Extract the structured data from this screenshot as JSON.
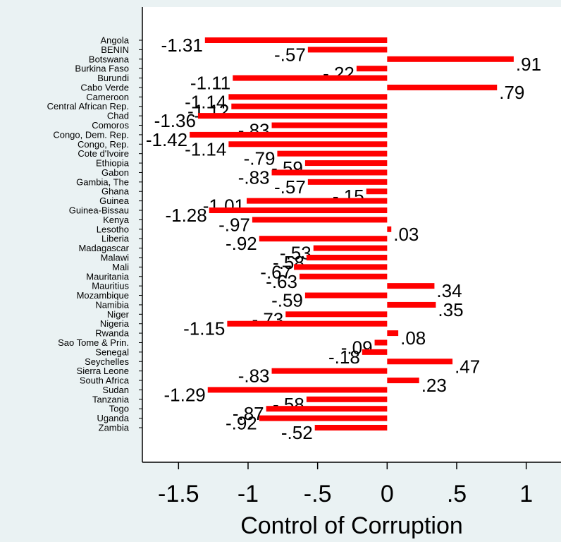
{
  "chart_data": {
    "type": "hbar",
    "x_label": "Control of Corruption",
    "categories": [
      "Angola",
      "BENIN",
      "Botswana",
      "Burkina Faso",
      "Burundi",
      "Cabo Verde",
      "Cameroon",
      "Central African Rep.",
      "Chad",
      "Comoros",
      "Congo, Dem. Rep.",
      "Congo, Rep.",
      "Cote d'Ivoire",
      "Ethiopia",
      "Gabon",
      "Gambia, The",
      "Ghana",
      "Guinea",
      "Guinea-Bissau",
      "Kenya",
      "Lesotho",
      "Liberia",
      "Madagascar",
      "Malawi",
      "Mali",
      "Mauritania",
      "Mauritius",
      "Mozambique",
      "Namibia",
      "Niger",
      "Nigeria",
      "Rwanda",
      "Sao Tome & Prin.",
      "Senegal",
      "Seychelles",
      "Sierra Leone",
      "South Africa",
      "Sudan",
      "Tanzania",
      "Togo",
      "Uganda",
      "Zambia"
    ],
    "values": [
      -1.31,
      -0.57,
      0.91,
      -0.22,
      -1.11,
      0.79,
      -1.14,
      -1.12,
      -1.36,
      -0.83,
      -1.42,
      -1.14,
      -0.79,
      -0.59,
      -0.83,
      -0.57,
      -0.15,
      -1.01,
      -1.28,
      -0.97,
      0.03,
      -0.92,
      -0.53,
      -0.58,
      -0.67,
      -0.63,
      0.34,
      -0.59,
      0.35,
      -0.73,
      -1.15,
      0.08,
      -0.09,
      -0.18,
      0.47,
      -0.83,
      0.23,
      -1.29,
      -0.58,
      -0.87,
      -0.92,
      -0.52
    ],
    "value_labels": [
      "-1.31",
      "-.57",
      ".91",
      "-.22",
      "-1.11",
      ".79",
      "-1.14",
      "-1.12",
      "-1.36",
      "-.83",
      "-1.42",
      "-1.14",
      "-.79",
      "-.59",
      "-.83",
      "-.57",
      "-.15",
      "-1.01",
      "-1.28",
      "-.97",
      ".03",
      "-.92",
      "-.53",
      "-.58",
      "-.67",
      "-.63",
      ".34",
      "-.59",
      ".35",
      "-.73",
      "-1.15",
      ".08",
      "-.09",
      "-.18",
      ".47",
      "-.83",
      ".23",
      "-1.29",
      "-.58",
      "-.87",
      "-.92",
      "-.52"
    ],
    "color": "#ff0000",
    "xlim": [
      -1.76,
      1.25
    ],
    "xticks": [
      -1.5,
      -1,
      {
        "value": -0.5,
        "label": "-.5"
      },
      0,
      {
        "value": 0.5,
        "label": ".5"
      },
      1
    ]
  }
}
